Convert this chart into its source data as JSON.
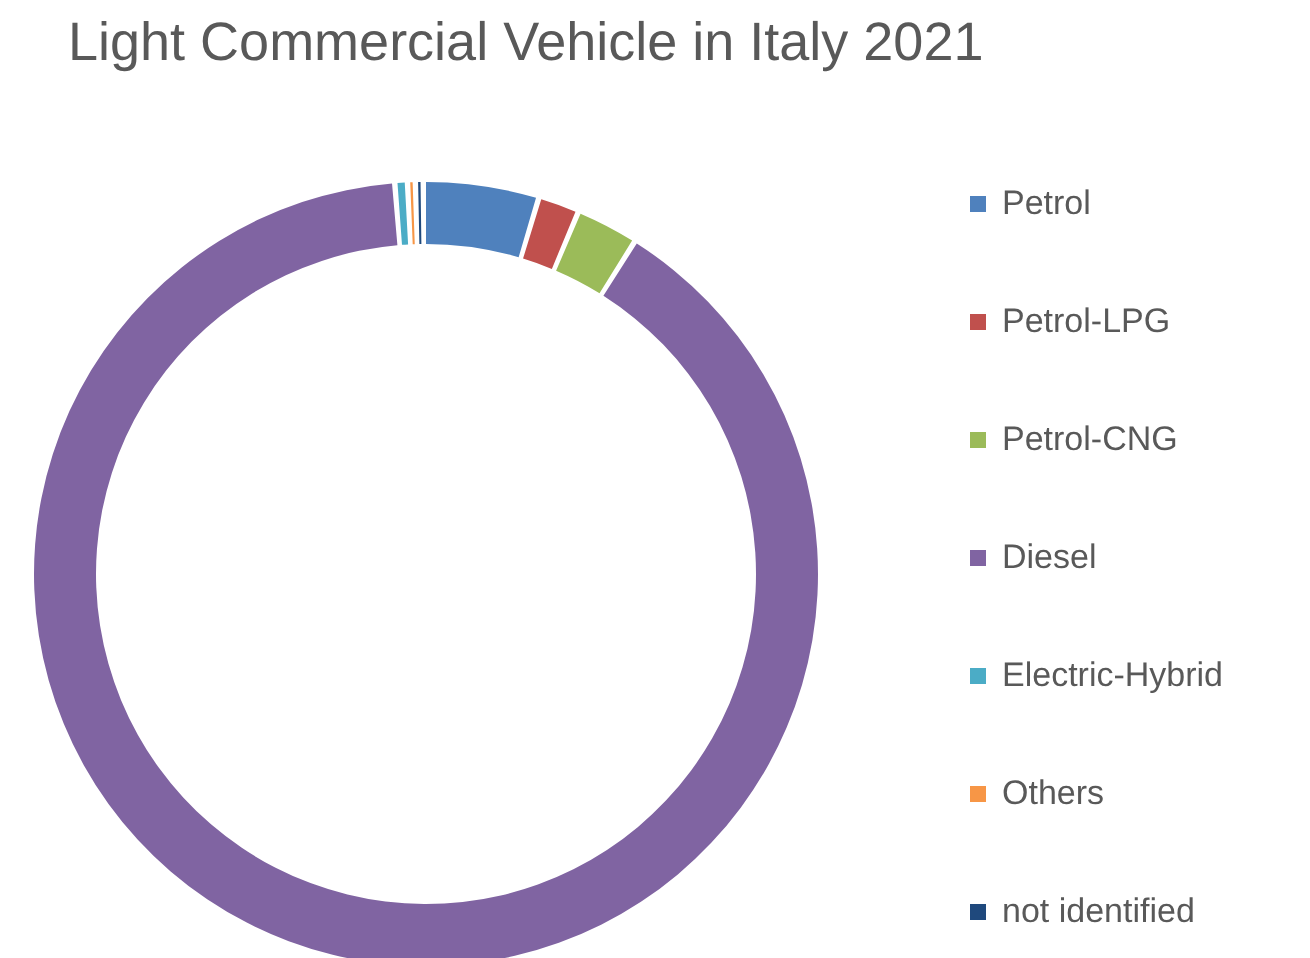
{
  "chart_data": {
    "type": "donut",
    "title": "Light Commercial Vehicle in Italy 2021",
    "categories": [
      "Petrol",
      "Petrol-LPG",
      "Petrol-CNG",
      "Diesel",
      "Electric-Hybrid",
      "Others",
      "not identified"
    ],
    "values": [
      4.6,
      1.5,
      2.4,
      91.0,
      0.3,
      0.1,
      0.1
    ],
    "colors": [
      "#4f81bd",
      "#c0504d",
      "#9bbb59",
      "#8064a2",
      "#4bacc6",
      "#f79646",
      "#1f497d"
    ],
    "legend": "right"
  }
}
